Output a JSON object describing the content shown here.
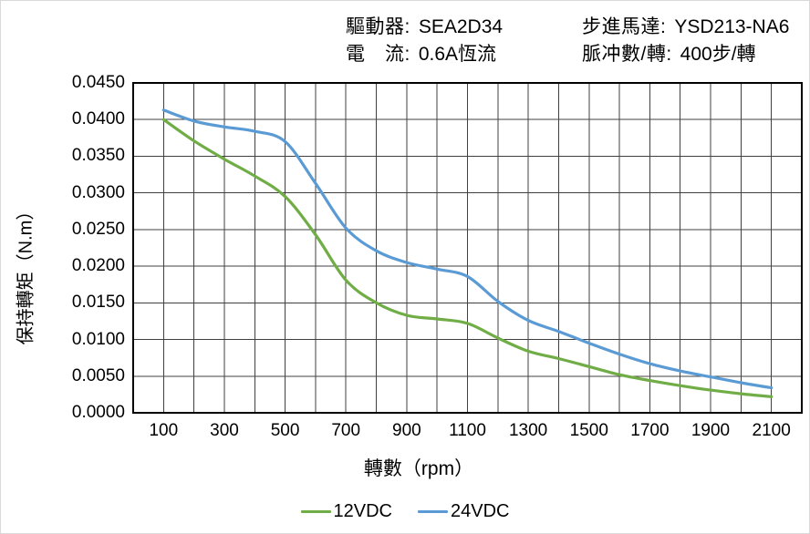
{
  "header": {
    "driver_label": "驅動器:",
    "driver_value": "SEA2D34",
    "motor_label": "步進馬達:",
    "motor_value": "YSD213-NA6",
    "current_label": "電　流:",
    "current_value": "0.6A恆流",
    "pulses_label": "脈冲數/轉:",
    "pulses_value": "400步/轉"
  },
  "chart_data": {
    "type": "line",
    "x": [
      100,
      200,
      300,
      400,
      500,
      600,
      700,
      800,
      900,
      1000,
      1100,
      1200,
      1300,
      1400,
      1500,
      1600,
      1700,
      1800,
      1900,
      2000,
      2100
    ],
    "series": [
      {
        "name": "12VDC",
        "color": "#70AD47",
        "values": [
          0.04,
          0.0371,
          0.0346,
          0.0323,
          0.0295,
          0.0243,
          0.0181,
          0.015,
          0.0133,
          0.0128,
          0.0122,
          0.0102,
          0.0084,
          0.0074,
          0.0063,
          0.0052,
          0.0044,
          0.0037,
          0.0031,
          0.0026,
          0.0022
        ]
      },
      {
        "name": "24VDC",
        "color": "#5B9BD5",
        "values": [
          0.0413,
          0.0398,
          0.039,
          0.0384,
          0.037,
          0.0313,
          0.0252,
          0.0221,
          0.0205,
          0.0196,
          0.0186,
          0.0152,
          0.0126,
          0.0111,
          0.0095,
          0.008,
          0.0067,
          0.0057,
          0.0049,
          0.0041,
          0.0034
        ]
      }
    ],
    "xlabel": "轉數（rpm）",
    "ylabel": "保持轉矩（N.m）",
    "xlim": [
      0,
      2200
    ],
    "ylim": [
      0,
      0.045
    ],
    "x_gridline_step": 100,
    "y_gridline_step": 0.005,
    "x_tick_labels": [
      "100",
      "300",
      "500",
      "700",
      "900",
      "1100",
      "1300",
      "1500",
      "1700",
      "1900",
      "2100"
    ],
    "y_tick_labels": [
      "0.0450",
      "0.0400",
      "0.0350",
      "0.0300",
      "0.0250",
      "0.0200",
      "0.0150",
      "0.0100",
      "0.0050",
      "0.0000"
    ],
    "grid": true,
    "legend_position": "bottom"
  },
  "colors": {
    "grid": "#404040",
    "axis_border": "#000000",
    "text": "#000000",
    "background": "#ffffff"
  }
}
